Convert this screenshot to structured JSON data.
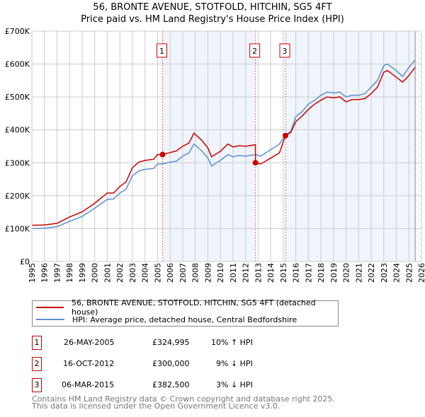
{
  "title": "56, BRONTE AVENUE, STOTFOLD, HITCHIN, SG5 4FT",
  "subtitle": "Price paid vs. HM Land Registry's House Price Index (HPI)",
  "chart_data": {
    "type": "line",
    "title": "56, BRONTE AVENUE, STOTFOLD, HITCHIN, SG5 4FT — Price paid vs. HM Land Registry's House Price Index (HPI)",
    "xlim": [
      1995,
      2026
    ],
    "ylim": [
      0,
      700000
    ],
    "x_ticks": [
      "1995",
      "1996",
      "1997",
      "1998",
      "1999",
      "2000",
      "2001",
      "2002",
      "2003",
      "2004",
      "2005",
      "2006",
      "2007",
      "2008",
      "2009",
      "2010",
      "2011",
      "2012",
      "2013",
      "2014",
      "2015",
      "2016",
      "2017",
      "2018",
      "2019",
      "2020",
      "2021",
      "2022",
      "2023",
      "2024",
      "2025",
      "2026"
    ],
    "y_ticks": [
      {
        "v": 0,
        "label": "£0"
      },
      {
        "v": 100000,
        "label": "£100K"
      },
      {
        "v": 200000,
        "label": "£200K"
      },
      {
        "v": 300000,
        "label": "£300K"
      },
      {
        "v": 400000,
        "label": "£400K"
      },
      {
        "v": 500000,
        "label": "£500K"
      },
      {
        "v": 600000,
        "label": "£600K"
      },
      {
        "v": 700000,
        "label": "£700K"
      }
    ],
    "grid": true,
    "x": [
      1995,
      1996,
      1997,
      1998,
      1999,
      2000,
      2001,
      2001.5,
      2002,
      2002.5,
      2003,
      2003.5,
      2004,
      2004.7,
      2005,
      2005.4,
      2006,
      2006.5,
      2007,
      2007.5,
      2007.9,
      2008.5,
      2009,
      2009.3,
      2010,
      2010.6,
      2011,
      2011.5,
      2012,
      2012.78,
      2012.8,
      2013.2,
      2014,
      2014.7,
      2015.18,
      2015.6,
      2016,
      2016.5,
      2017,
      2017.5,
      2018,
      2018.5,
      2019,
      2019.5,
      2020,
      2020.5,
      2021,
      2021.5,
      2022,
      2022.5,
      2023,
      2023.3,
      2024,
      2024.5,
      2025,
      2025.5
    ],
    "series": [
      {
        "name": "56, BRONTE AVENUE, STOTFOLD, HITCHIN, SG5 4FT (detached house)",
        "color": "#cc0000",
        "values": [
          110,
          111,
          116,
          135,
          151,
          177,
          208,
          208,
          228,
          242,
          285,
          302,
          307,
          311,
          325,
          325,
          331,
          336,
          350,
          360,
          390,
          369,
          345,
          318,
          335,
          357,
          348,
          352,
          350,
          355,
          300,
          296,
          314,
          330,
          382.5,
          392,
          425,
          442,
          462,
          478,
          490,
          500,
          497,
          500,
          485,
          492,
          492,
          495,
          510,
          530,
          575,
          580,
          560,
          545,
          565,
          590
        ]
      },
      {
        "name": "HPI: Average price, detached house, Central Bedfordshire",
        "color": "#5b8fd4",
        "values": [
          100,
          101,
          106,
          122,
          137,
          162,
          189,
          190,
          208,
          220,
          260,
          275,
          280,
          283,
          296,
          297,
          302,
          305,
          320,
          330,
          357,
          337,
          315,
          290,
          307,
          325,
          318,
          322,
          320,
          325,
          325,
          320,
          340,
          357,
          385,
          395,
          440,
          455,
          478,
          490,
          505,
          515,
          512,
          515,
          500,
          505,
          505,
          510,
          530,
          550,
          595,
          600,
          580,
          562,
          590,
          612
        ]
      }
    ],
    "value_unit": "£K",
    "sales": [
      {
        "id": "1",
        "x": 2005.4,
        "value": 324995
      },
      {
        "id": "2",
        "x": 2012.79,
        "value": 300000
      },
      {
        "id": "3",
        "x": 2015.18,
        "value": 382500
      }
    ],
    "legend_placement": "below"
  },
  "legend": {
    "red": "56, BRONTE AVENUE, STOTFOLD, HITCHIN, SG5 4FT (detached house)",
    "blue": "HPI: Average price, detached house, Central Bedfordshire"
  },
  "sales_table": [
    {
      "id": "1",
      "date": "26-MAY-2005",
      "price": "£324,995",
      "hpi": "10% ↑ HPI"
    },
    {
      "id": "2",
      "date": "16-OCT-2012",
      "price": "£300,000",
      "hpi": "9% ↓ HPI"
    },
    {
      "id": "3",
      "date": "06-MAR-2015",
      "price": "£382,500",
      "hpi": "3% ↓ HPI"
    }
  ],
  "footer": {
    "line1": "Contains HM Land Registry data © Crown copyright and database right 2025.",
    "line2": "This data is licensed under the Open Government Licence v3.0."
  }
}
